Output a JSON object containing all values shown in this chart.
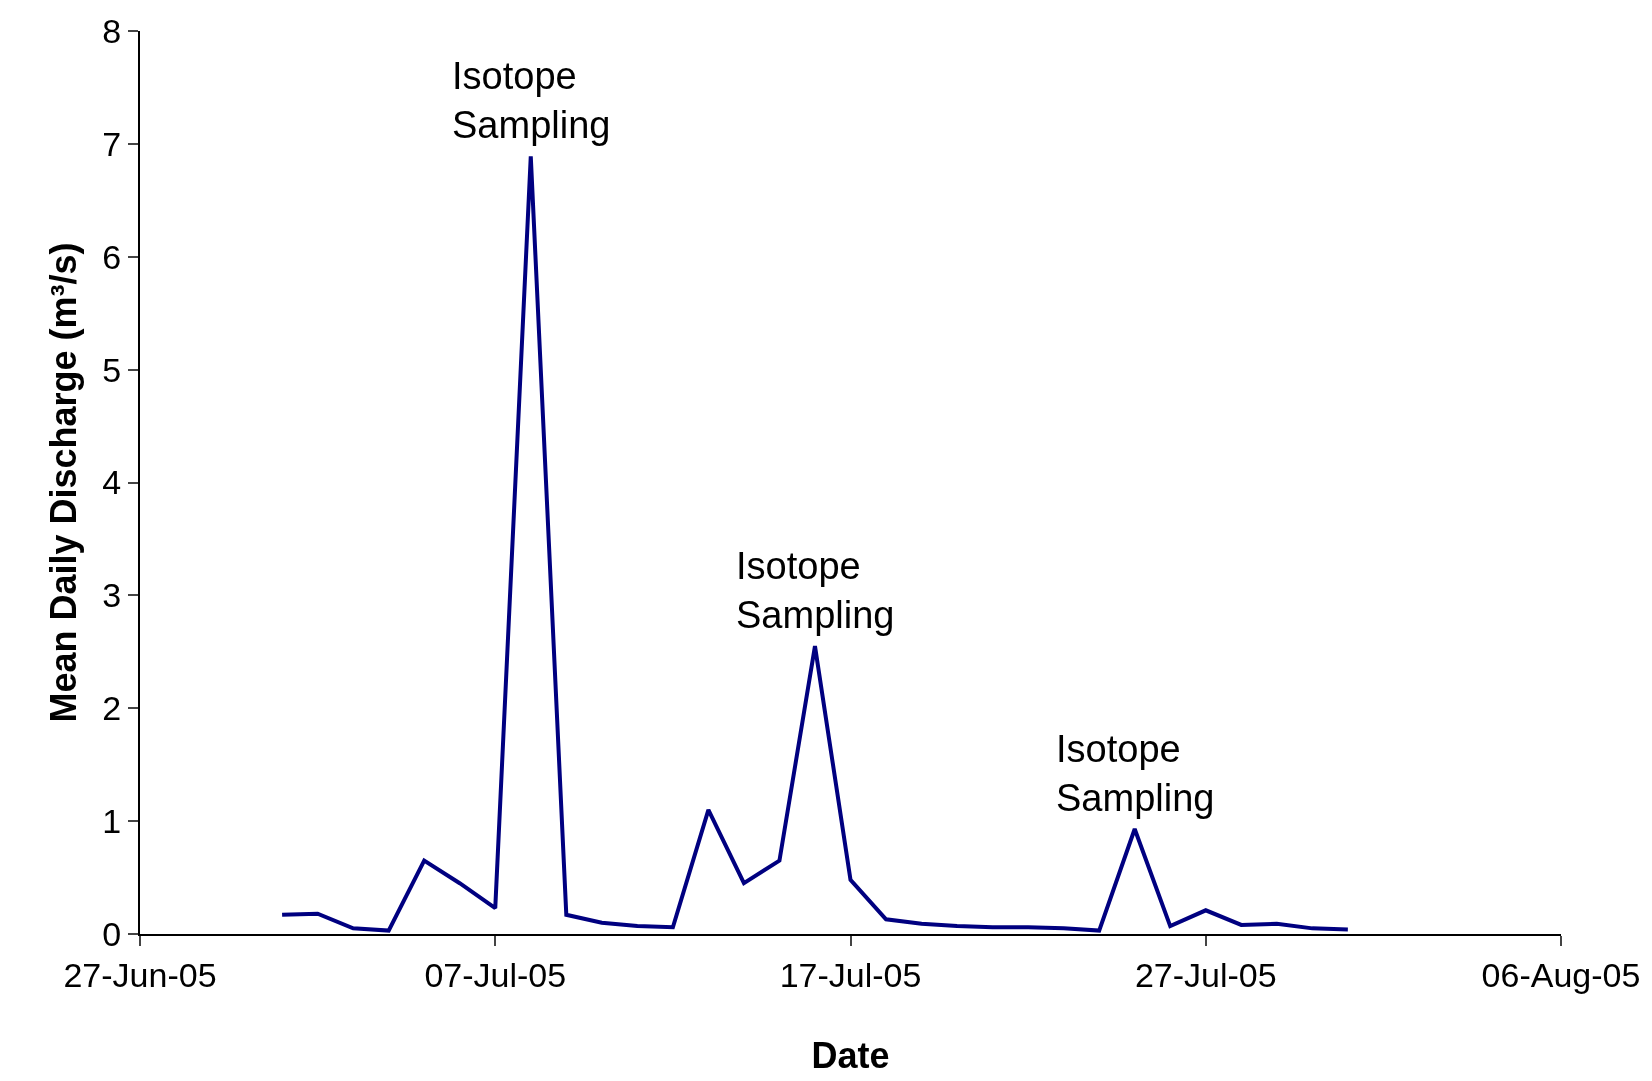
{
  "chart_data": {
    "type": "line",
    "xlabel": "Date",
    "ylabel": "Mean Daily Discharge (m³/s)",
    "x": [
      "2005-07-01",
      "2005-07-02",
      "2005-07-03",
      "2005-07-04",
      "2005-07-05",
      "2005-07-06",
      "2005-07-07",
      "2005-07-08",
      "2005-07-09",
      "2005-07-10",
      "2005-07-11",
      "2005-07-12",
      "2005-07-13",
      "2005-07-14",
      "2005-07-15",
      "2005-07-16",
      "2005-07-17",
      "2005-07-18",
      "2005-07-19",
      "2005-07-20",
      "2005-07-21",
      "2005-07-22",
      "2005-07-23",
      "2005-07-24",
      "2005-07-25",
      "2005-07-26",
      "2005-07-27",
      "2005-07-28",
      "2005-07-29",
      "2005-07-30",
      "2005-07-31"
    ],
    "series": [
      {
        "color": "#000080",
        "values": [
          0.17,
          0.18,
          0.05,
          0.03,
          0.65,
          0.45,
          0.23,
          6.89,
          0.17,
          0.1,
          0.07,
          0.06,
          1.1,
          0.45,
          0.65,
          2.55,
          0.48,
          0.13,
          0.09,
          0.07,
          0.06,
          0.06,
          0.05,
          0.03,
          0.93,
          0.07,
          0.21,
          0.08,
          0.09,
          0.05,
          0.04
        ]
      }
    ],
    "xlim": [
      "2005-06-27",
      "2005-08-06"
    ],
    "xticks": [
      {
        "value": "2005-06-27",
        "label": "27-Jun-05"
      },
      {
        "value": "2005-07-07",
        "label": "07-Jul-05"
      },
      {
        "value": "2005-07-17",
        "label": "17-Jul-05"
      },
      {
        "value": "2005-07-27",
        "label": "27-Jul-05"
      },
      {
        "value": "2005-08-06",
        "label": "06-Aug-05"
      }
    ],
    "ylim": [
      0,
      8
    ],
    "yticks": [
      0,
      1,
      2,
      3,
      4,
      5,
      6,
      7,
      8
    ],
    "marker": "none",
    "line_style": "solid",
    "annotations": [
      {
        "text": "Isotope\nSampling",
        "x": "2005-07-08",
        "y": 6.89
      },
      {
        "text": "Isotope\nSampling",
        "x": "2005-07-16",
        "y": 2.55
      },
      {
        "text": "Isotope\nSampling",
        "x": "2005-07-25",
        "y": 0.93
      }
    ]
  }
}
